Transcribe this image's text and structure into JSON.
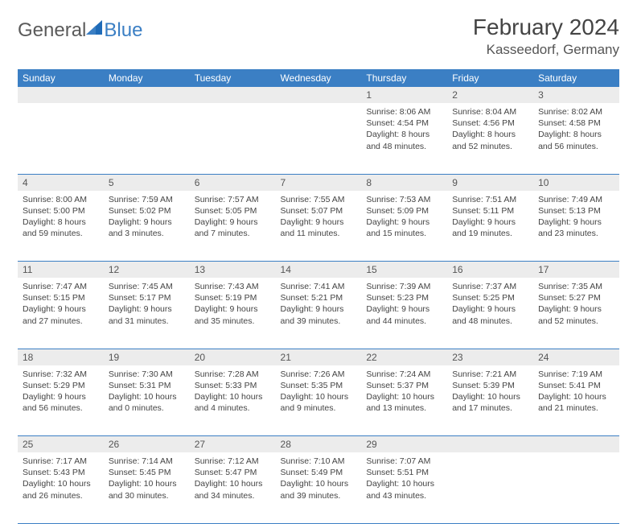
{
  "logo": {
    "text1": "General",
    "text2": "Blue"
  },
  "title": "February 2024",
  "location": "Kasseedorf, Germany",
  "colors": {
    "header_bg": "#3b7fc4",
    "header_fg": "#ffffff",
    "daynum_bg": "#ececec",
    "border": "#3b7fc4",
    "text": "#444444"
  },
  "weekdays": [
    "Sunday",
    "Monday",
    "Tuesday",
    "Wednesday",
    "Thursday",
    "Friday",
    "Saturday"
  ],
  "weeks": [
    {
      "nums": [
        "",
        "",
        "",
        "",
        "1",
        "2",
        "3"
      ],
      "cells": [
        null,
        null,
        null,
        null,
        {
          "sunrise": "Sunrise: 8:06 AM",
          "sunset": "Sunset: 4:54 PM",
          "day1": "Daylight: 8 hours",
          "day2": "and 48 minutes."
        },
        {
          "sunrise": "Sunrise: 8:04 AM",
          "sunset": "Sunset: 4:56 PM",
          "day1": "Daylight: 8 hours",
          "day2": "and 52 minutes."
        },
        {
          "sunrise": "Sunrise: 8:02 AM",
          "sunset": "Sunset: 4:58 PM",
          "day1": "Daylight: 8 hours",
          "day2": "and 56 minutes."
        }
      ]
    },
    {
      "nums": [
        "4",
        "5",
        "6",
        "7",
        "8",
        "9",
        "10"
      ],
      "cells": [
        {
          "sunrise": "Sunrise: 8:00 AM",
          "sunset": "Sunset: 5:00 PM",
          "day1": "Daylight: 8 hours",
          "day2": "and 59 minutes."
        },
        {
          "sunrise": "Sunrise: 7:59 AM",
          "sunset": "Sunset: 5:02 PM",
          "day1": "Daylight: 9 hours",
          "day2": "and 3 minutes."
        },
        {
          "sunrise": "Sunrise: 7:57 AM",
          "sunset": "Sunset: 5:05 PM",
          "day1": "Daylight: 9 hours",
          "day2": "and 7 minutes."
        },
        {
          "sunrise": "Sunrise: 7:55 AM",
          "sunset": "Sunset: 5:07 PM",
          "day1": "Daylight: 9 hours",
          "day2": "and 11 minutes."
        },
        {
          "sunrise": "Sunrise: 7:53 AM",
          "sunset": "Sunset: 5:09 PM",
          "day1": "Daylight: 9 hours",
          "day2": "and 15 minutes."
        },
        {
          "sunrise": "Sunrise: 7:51 AM",
          "sunset": "Sunset: 5:11 PM",
          "day1": "Daylight: 9 hours",
          "day2": "and 19 minutes."
        },
        {
          "sunrise": "Sunrise: 7:49 AM",
          "sunset": "Sunset: 5:13 PM",
          "day1": "Daylight: 9 hours",
          "day2": "and 23 minutes."
        }
      ]
    },
    {
      "nums": [
        "11",
        "12",
        "13",
        "14",
        "15",
        "16",
        "17"
      ],
      "cells": [
        {
          "sunrise": "Sunrise: 7:47 AM",
          "sunset": "Sunset: 5:15 PM",
          "day1": "Daylight: 9 hours",
          "day2": "and 27 minutes."
        },
        {
          "sunrise": "Sunrise: 7:45 AM",
          "sunset": "Sunset: 5:17 PM",
          "day1": "Daylight: 9 hours",
          "day2": "and 31 minutes."
        },
        {
          "sunrise": "Sunrise: 7:43 AM",
          "sunset": "Sunset: 5:19 PM",
          "day1": "Daylight: 9 hours",
          "day2": "and 35 minutes."
        },
        {
          "sunrise": "Sunrise: 7:41 AM",
          "sunset": "Sunset: 5:21 PM",
          "day1": "Daylight: 9 hours",
          "day2": "and 39 minutes."
        },
        {
          "sunrise": "Sunrise: 7:39 AM",
          "sunset": "Sunset: 5:23 PM",
          "day1": "Daylight: 9 hours",
          "day2": "and 44 minutes."
        },
        {
          "sunrise": "Sunrise: 7:37 AM",
          "sunset": "Sunset: 5:25 PM",
          "day1": "Daylight: 9 hours",
          "day2": "and 48 minutes."
        },
        {
          "sunrise": "Sunrise: 7:35 AM",
          "sunset": "Sunset: 5:27 PM",
          "day1": "Daylight: 9 hours",
          "day2": "and 52 minutes."
        }
      ]
    },
    {
      "nums": [
        "18",
        "19",
        "20",
        "21",
        "22",
        "23",
        "24"
      ],
      "cells": [
        {
          "sunrise": "Sunrise: 7:32 AM",
          "sunset": "Sunset: 5:29 PM",
          "day1": "Daylight: 9 hours",
          "day2": "and 56 minutes."
        },
        {
          "sunrise": "Sunrise: 7:30 AM",
          "sunset": "Sunset: 5:31 PM",
          "day1": "Daylight: 10 hours",
          "day2": "and 0 minutes."
        },
        {
          "sunrise": "Sunrise: 7:28 AM",
          "sunset": "Sunset: 5:33 PM",
          "day1": "Daylight: 10 hours",
          "day2": "and 4 minutes."
        },
        {
          "sunrise": "Sunrise: 7:26 AM",
          "sunset": "Sunset: 5:35 PM",
          "day1": "Daylight: 10 hours",
          "day2": "and 9 minutes."
        },
        {
          "sunrise": "Sunrise: 7:24 AM",
          "sunset": "Sunset: 5:37 PM",
          "day1": "Daylight: 10 hours",
          "day2": "and 13 minutes."
        },
        {
          "sunrise": "Sunrise: 7:21 AM",
          "sunset": "Sunset: 5:39 PM",
          "day1": "Daylight: 10 hours",
          "day2": "and 17 minutes."
        },
        {
          "sunrise": "Sunrise: 7:19 AM",
          "sunset": "Sunset: 5:41 PM",
          "day1": "Daylight: 10 hours",
          "day2": "and 21 minutes."
        }
      ]
    },
    {
      "nums": [
        "25",
        "26",
        "27",
        "28",
        "29",
        "",
        ""
      ],
      "cells": [
        {
          "sunrise": "Sunrise: 7:17 AM",
          "sunset": "Sunset: 5:43 PM",
          "day1": "Daylight: 10 hours",
          "day2": "and 26 minutes."
        },
        {
          "sunrise": "Sunrise: 7:14 AM",
          "sunset": "Sunset: 5:45 PM",
          "day1": "Daylight: 10 hours",
          "day2": "and 30 minutes."
        },
        {
          "sunrise": "Sunrise: 7:12 AM",
          "sunset": "Sunset: 5:47 PM",
          "day1": "Daylight: 10 hours",
          "day2": "and 34 minutes."
        },
        {
          "sunrise": "Sunrise: 7:10 AM",
          "sunset": "Sunset: 5:49 PM",
          "day1": "Daylight: 10 hours",
          "day2": "and 39 minutes."
        },
        {
          "sunrise": "Sunrise: 7:07 AM",
          "sunset": "Sunset: 5:51 PM",
          "day1": "Daylight: 10 hours",
          "day2": "and 43 minutes."
        },
        null,
        null
      ]
    }
  ]
}
